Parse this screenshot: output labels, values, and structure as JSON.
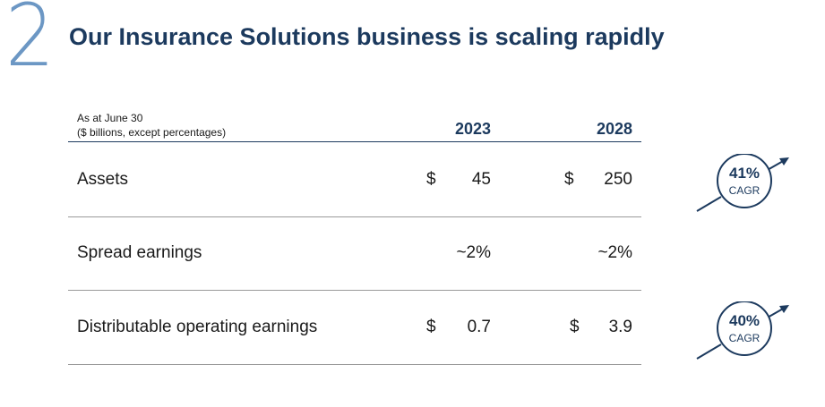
{
  "slide": {
    "number": "2",
    "title": "Our Insurance Solutions business is scaling rapidly"
  },
  "table": {
    "note_line1": "As at June 30",
    "note_line2": "($ billions, except percentages)",
    "years": [
      "2023",
      "2028"
    ],
    "rows": [
      {
        "label": "Assets",
        "v2023_prefix": "$",
        "v2023": "45",
        "v2028_prefix": "$",
        "v2028": "250"
      },
      {
        "label": "Spread earnings",
        "v2023_prefix": "",
        "v2023": "~2%",
        "v2028_prefix": "",
        "v2028": "~2%"
      },
      {
        "label": "Distributable operating earnings",
        "v2023_prefix": "$",
        "v2023": "0.7",
        "v2028_prefix": "$",
        "v2028": "3.9"
      }
    ]
  },
  "badges": [
    {
      "value": "41%",
      "label": "CAGR",
      "icon": "growth-arrow-icon"
    },
    {
      "value": "40%",
      "label": "CAGR",
      "icon": "growth-arrow-icon"
    }
  ],
  "colors": {
    "accent": "#1c3a5e",
    "number": "#6c97c4",
    "rule": "#9a9a9a"
  }
}
